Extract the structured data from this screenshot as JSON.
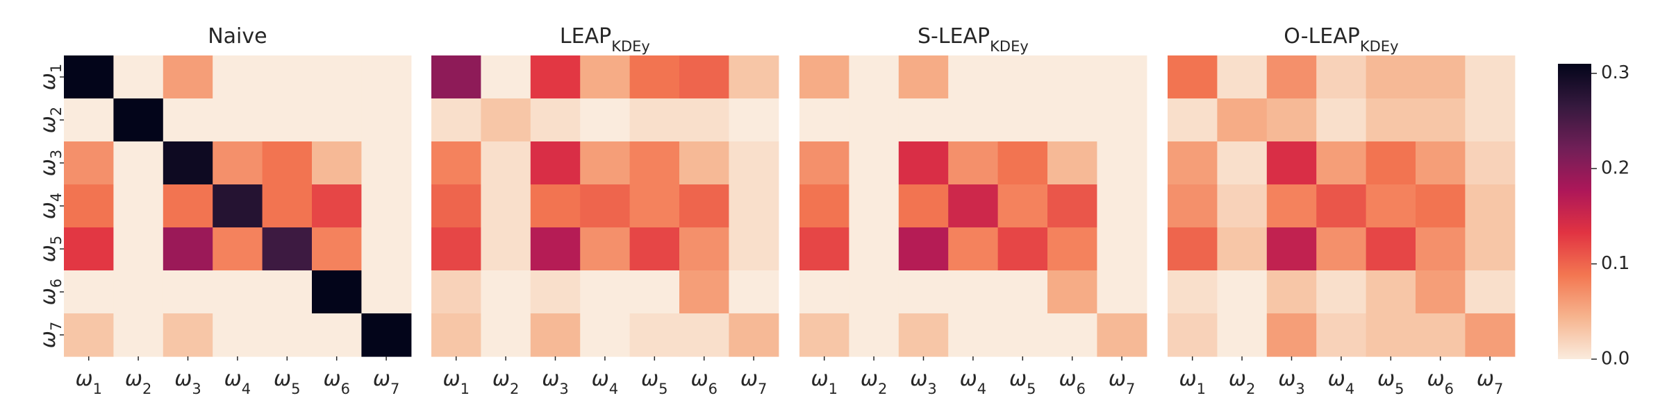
{
  "chart_data": [
    {
      "type": "heatmap",
      "title": "Naive",
      "title_sub": "",
      "x_categories": [
        "ω1",
        "ω2",
        "ω3",
        "ω4",
        "ω5",
        "ω6",
        "ω7"
      ],
      "y_categories": [
        "ω1",
        "ω2",
        "ω3",
        "ω4",
        "ω5",
        "ω6",
        "ω7"
      ],
      "values": [
        [
          0.31,
          0.0,
          0.06,
          0.0,
          0.0,
          0.0,
          0.0
        ],
        [
          0.0,
          0.31,
          0.0,
          0.0,
          0.0,
          0.0,
          0.0
        ],
        [
          0.07,
          0.0,
          0.3,
          0.07,
          0.09,
          0.04,
          0.0
        ],
        [
          0.09,
          0.0,
          0.09,
          0.28,
          0.09,
          0.12,
          0.0
        ],
        [
          0.13,
          0.0,
          0.19,
          0.08,
          0.26,
          0.08,
          0.0
        ],
        [
          0.0,
          0.0,
          0.0,
          0.0,
          0.0,
          0.31,
          0.0
        ],
        [
          0.03,
          0.0,
          0.03,
          0.0,
          0.0,
          0.0,
          0.31
        ]
      ]
    },
    {
      "type": "heatmap",
      "title": "LEAP",
      "title_sub": "KDEy",
      "x_categories": [
        "ω1",
        "ω2",
        "ω3",
        "ω4",
        "ω5",
        "ω6",
        "ω7"
      ],
      "y_categories": [
        "ω1",
        "ω2",
        "ω3",
        "ω4",
        "ω5",
        "ω6",
        "ω7"
      ],
      "values": [
        [
          0.2,
          0.0,
          0.13,
          0.05,
          0.09,
          0.1,
          0.03
        ],
        [
          0.01,
          0.03,
          0.01,
          0.0,
          0.01,
          0.01,
          0.0
        ],
        [
          0.08,
          0.01,
          0.14,
          0.06,
          0.08,
          0.04,
          0.01
        ],
        [
          0.1,
          0.01,
          0.09,
          0.1,
          0.08,
          0.1,
          0.01
        ],
        [
          0.12,
          0.01,
          0.17,
          0.07,
          0.12,
          0.07,
          0.01
        ],
        [
          0.02,
          0.0,
          0.01,
          0.0,
          0.0,
          0.06,
          0.0
        ],
        [
          0.03,
          0.0,
          0.04,
          0.0,
          0.01,
          0.01,
          0.04
        ]
      ]
    },
    {
      "type": "heatmap",
      "title": "S-LEAP",
      "title_sub": "KDEy",
      "x_categories": [
        "ω1",
        "ω2",
        "ω3",
        "ω4",
        "ω5",
        "ω6",
        "ω7"
      ],
      "y_categories": [
        "ω1",
        "ω2",
        "ω3",
        "ω4",
        "ω5",
        "ω6",
        "ω7"
      ],
      "values": [
        [
          0.05,
          0.0,
          0.05,
          0.0,
          0.0,
          0.0,
          0.0
        ],
        [
          0.0,
          0.0,
          0.0,
          0.0,
          0.0,
          0.0,
          0.0
        ],
        [
          0.07,
          0.0,
          0.14,
          0.07,
          0.09,
          0.04,
          0.0
        ],
        [
          0.09,
          0.0,
          0.09,
          0.15,
          0.08,
          0.11,
          0.0
        ],
        [
          0.12,
          0.0,
          0.17,
          0.08,
          0.12,
          0.08,
          0.0
        ],
        [
          0.0,
          0.0,
          0.0,
          0.0,
          0.0,
          0.05,
          0.0
        ],
        [
          0.03,
          0.0,
          0.03,
          0.0,
          0.0,
          0.0,
          0.04
        ]
      ]
    },
    {
      "type": "heatmap",
      "title": "O-LEAP",
      "title_sub": "KDEy",
      "x_categories": [
        "ω1",
        "ω2",
        "ω3",
        "ω4",
        "ω5",
        "ω6",
        "ω7"
      ],
      "y_categories": [
        "ω1",
        "ω2",
        "ω3",
        "ω4",
        "ω5",
        "ω6",
        "ω7"
      ],
      "values": [
        [
          0.09,
          0.01,
          0.07,
          0.02,
          0.04,
          0.04,
          0.01
        ],
        [
          0.01,
          0.05,
          0.04,
          0.01,
          0.03,
          0.03,
          0.01
        ],
        [
          0.06,
          0.01,
          0.14,
          0.06,
          0.09,
          0.06,
          0.02
        ],
        [
          0.07,
          0.02,
          0.08,
          0.11,
          0.08,
          0.09,
          0.03
        ],
        [
          0.1,
          0.03,
          0.16,
          0.07,
          0.12,
          0.07,
          0.03
        ],
        [
          0.01,
          0.0,
          0.03,
          0.01,
          0.03,
          0.06,
          0.01
        ],
        [
          0.02,
          0.0,
          0.06,
          0.02,
          0.03,
          0.03,
          0.06
        ]
      ]
    }
  ],
  "colorbar": {
    "ticks": [
      0.0,
      0.1,
      0.2,
      0.3
    ],
    "tick_labels": [
      "0.0",
      "0.1",
      "0.2",
      "0.3"
    ],
    "vmin": 0.0,
    "vmax": 0.31,
    "colormap": "rocket_r",
    "colors": [
      "#faebdd",
      "#f6b48e",
      "#f37651",
      "#e13342",
      "#ad1759",
      "#701f57",
      "#35193e",
      "#03051a"
    ]
  }
}
